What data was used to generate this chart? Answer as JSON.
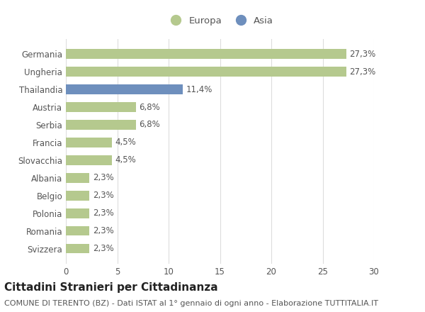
{
  "categories": [
    "Germania",
    "Ungheria",
    "Thailandia",
    "Austria",
    "Serbia",
    "Francia",
    "Slovacchia",
    "Albania",
    "Belgio",
    "Polonia",
    "Romania",
    "Svizzera"
  ],
  "values": [
    27.3,
    27.3,
    11.4,
    6.8,
    6.8,
    4.5,
    4.5,
    2.3,
    2.3,
    2.3,
    2.3,
    2.3
  ],
  "labels": [
    "27,3%",
    "27,3%",
    "11,4%",
    "6,8%",
    "6,8%",
    "4,5%",
    "4,5%",
    "2,3%",
    "2,3%",
    "2,3%",
    "2,3%",
    "2,3%"
  ],
  "colors": [
    "#b5c98e",
    "#b5c98e",
    "#6e8fbd",
    "#b5c98e",
    "#b5c98e",
    "#b5c98e",
    "#b5c98e",
    "#b5c98e",
    "#b5c98e",
    "#b5c98e",
    "#b5c98e",
    "#b5c98e"
  ],
  "legend_labels": [
    "Europa",
    "Asia"
  ],
  "legend_colors": [
    "#b5c98e",
    "#6e8fbd"
  ],
  "title": "Cittadini Stranieri per Cittadinanza",
  "subtitle": "COMUNE DI TERENTO (BZ) - Dati ISTAT al 1° gennaio di ogni anno - Elaborazione TUTTITALIA.IT",
  "xlim": [
    0,
    30
  ],
  "xticks": [
    0,
    5,
    10,
    15,
    20,
    25,
    30
  ],
  "background_color": "#ffffff",
  "bar_height": 0.55,
  "grid_color": "#dddddd",
  "text_color": "#555555",
  "label_fontsize": 8.5,
  "tick_fontsize": 8.5,
  "title_fontsize": 11,
  "subtitle_fontsize": 8
}
